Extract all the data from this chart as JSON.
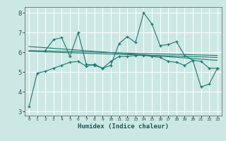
{
  "xlabel": "Humidex (Indice chaleur)",
  "bg_color": "#cce8e4",
  "grid_color": "#ffffff",
  "line_color": "#1a7a6e",
  "xlim": [
    -0.5,
    23.5
  ],
  "ylim": [
    2.8,
    8.3
  ],
  "xticks": [
    0,
    1,
    2,
    3,
    4,
    5,
    6,
    7,
    8,
    9,
    10,
    11,
    12,
    13,
    14,
    15,
    16,
    17,
    18,
    19,
    20,
    21,
    22,
    23
  ],
  "yticks": [
    3,
    4,
    5,
    6,
    7,
    8
  ],
  "series1_x": [
    0,
    1,
    2,
    3,
    4,
    5,
    6,
    7,
    8,
    9,
    10,
    11,
    12,
    13,
    14,
    15,
    16,
    17,
    18,
    19,
    20,
    21,
    22,
    23
  ],
  "series1_y": [
    3.25,
    4.95,
    5.05,
    5.2,
    5.35,
    5.5,
    5.55,
    5.3,
    5.4,
    5.2,
    5.55,
    5.8,
    5.8,
    5.85,
    5.85,
    5.8,
    5.75,
    5.55,
    5.5,
    5.35,
    5.6,
    5.55,
    5.2,
    5.2
  ],
  "series2_x": [
    2,
    3,
    4,
    5,
    6,
    7,
    8,
    9,
    10,
    11,
    12,
    13,
    14,
    15,
    16,
    17,
    18,
    19,
    20,
    21,
    22,
    23
  ],
  "series2_y": [
    6.1,
    6.65,
    6.75,
    5.8,
    7.0,
    5.4,
    5.35,
    5.2,
    5.35,
    6.45,
    6.8,
    6.5,
    8.0,
    7.45,
    6.35,
    6.4,
    6.55,
    5.85,
    5.6,
    4.25,
    4.4,
    5.2
  ],
  "trend1_x": [
    0,
    23
  ],
  "trend1_y": [
    6.1,
    5.85
  ],
  "trend2_x": [
    0,
    23
  ],
  "trend2_y": [
    6.3,
    5.6
  ],
  "trend3_x": [
    0,
    23
  ],
  "trend3_y": [
    6.05,
    5.75
  ]
}
